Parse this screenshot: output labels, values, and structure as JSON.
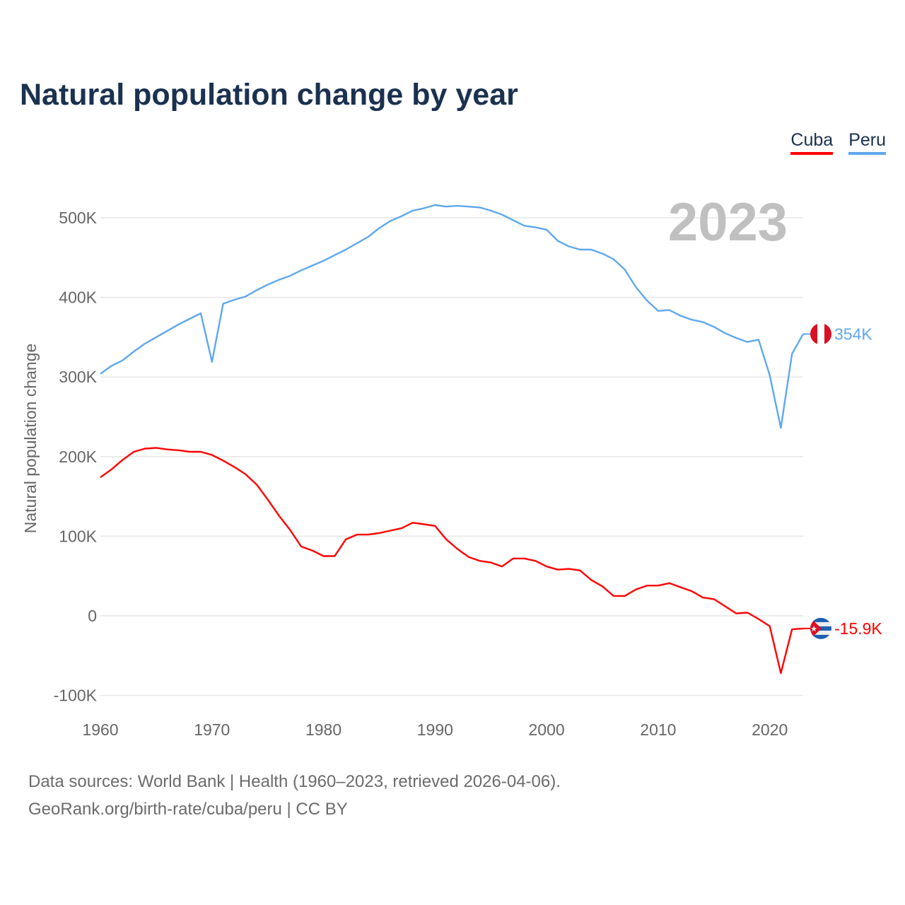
{
  "title": "Natural population change by year",
  "legend": [
    {
      "label": "Cuba",
      "color": "#ff0000"
    },
    {
      "label": "Peru",
      "color": "#5ea8ee"
    }
  ],
  "footer": {
    "line1": "Data sources: World Bank | Health (1960–2023, retrieved 2026-04-06).",
    "line2": "GeoRank.org/birth-rate/cuba/peru | CC BY"
  },
  "chart_data": {
    "type": "line",
    "title": "Natural population change by year",
    "xlabel": "",
    "ylabel": "Natural population change",
    "year_watermark": "2023",
    "xlim": [
      1960,
      2023
    ],
    "ylim": [
      -100000,
      520000
    ],
    "x_ticks": [
      "1960",
      "1970",
      "1980",
      "1990",
      "2000",
      "2010",
      "2020"
    ],
    "y_ticks": [
      {
        "value": -100000,
        "label": "-100K"
      },
      {
        "value": 0,
        "label": "0"
      },
      {
        "value": 100000,
        "label": "100K"
      },
      {
        "value": 200000,
        "label": "200K"
      },
      {
        "value": 300000,
        "label": "300K"
      },
      {
        "value": 400000,
        "label": "400K"
      },
      {
        "value": 500000,
        "label": "500K"
      }
    ],
    "grid": true,
    "legend_position": "top-right",
    "x_start": 1960,
    "series": [
      {
        "name": "Cuba",
        "color": "#ff0000",
        "end_label": "-15.9K",
        "flag": "cuba",
        "values": [
          174000,
          184000,
          196000,
          206000,
          210000,
          211000,
          209000,
          208000,
          206000,
          206000,
          202000,
          195000,
          187000,
          178000,
          165000,
          146000,
          126000,
          108000,
          87000,
          82000,
          75000,
          75000,
          96000,
          102000,
          102000,
          104000,
          107000,
          110000,
          117000,
          115000,
          113000,
          96000,
          84000,
          74000,
          69000,
          67000,
          62000,
          72000,
          72000,
          69000,
          62000,
          58000,
          59000,
          57000,
          45000,
          37000,
          25000,
          25000,
          33000,
          38000,
          38000,
          41000,
          36000,
          31000,
          23000,
          21000,
          12000,
          3000,
          4000,
          -4000,
          -13000,
          -72000,
          -17000,
          -15900
        ]
      },
      {
        "name": "Peru",
        "color": "#5ea8ee",
        "end_label": "354K",
        "flag": "peru",
        "values": [
          304000,
          314000,
          321000,
          332000,
          342000,
          350000,
          358000,
          366000,
          373000,
          380000,
          319000,
          392000,
          397000,
          401000,
          409000,
          416000,
          422000,
          427000,
          434000,
          440000,
          446000,
          453000,
          460000,
          468000,
          476000,
          487000,
          496000,
          502000,
          509000,
          512000,
          516000,
          514000,
          515000,
          514000,
          513000,
          509000,
          504000,
          497000,
          490000,
          488000,
          485000,
          471000,
          464000,
          460000,
          460000,
          455000,
          448000,
          435000,
          413000,
          396000,
          383000,
          384000,
          377000,
          372000,
          369000,
          363000,
          355000,
          349000,
          344000,
          347000,
          302000,
          236000,
          329000,
          354000
        ]
      }
    ]
  }
}
